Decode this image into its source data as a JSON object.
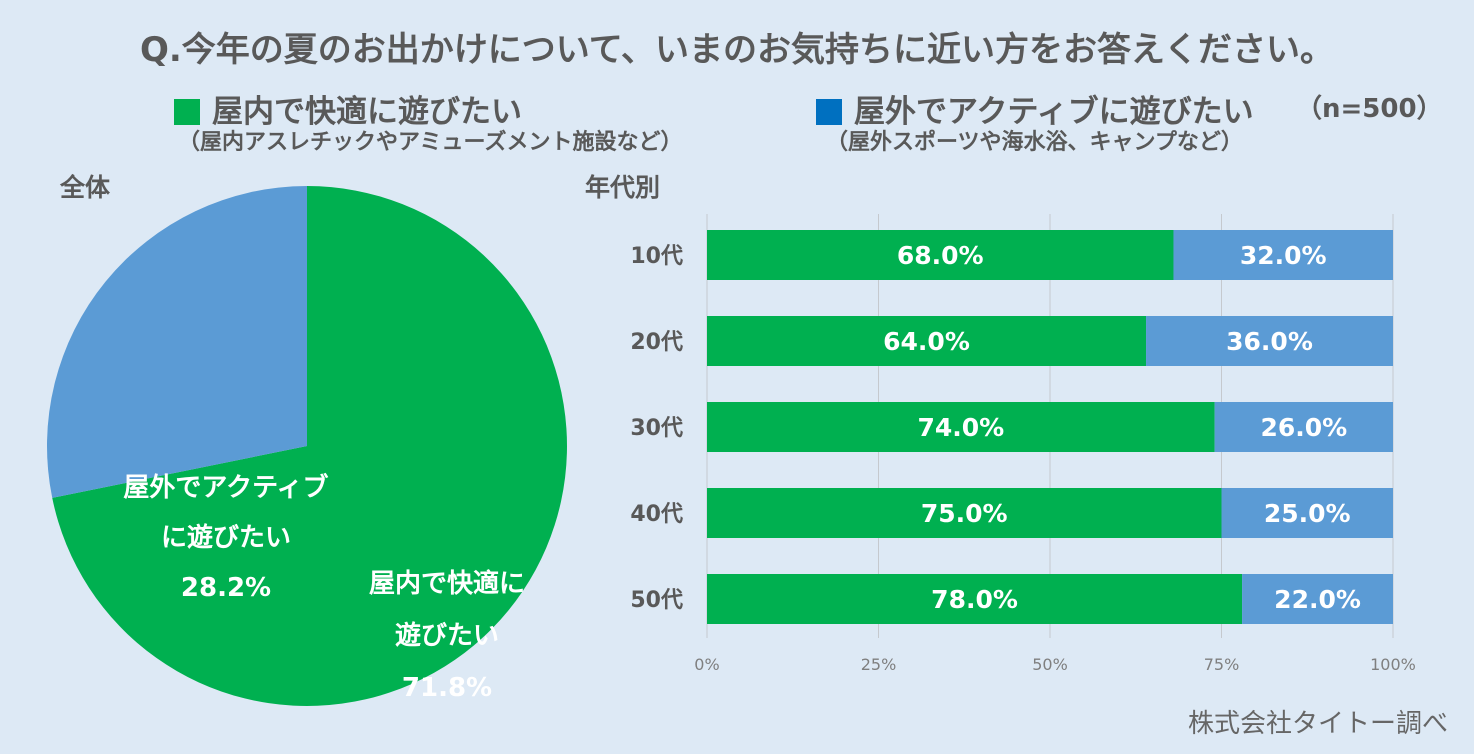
{
  "title": "Q.今年の夏のお出かけについて、いまのお気持ちに近い方をお答えください。",
  "legend": {
    "indoor": {
      "label": "屋内で快適に遊びたい",
      "sub": "（屋内アスレチックやアミューズメント施設など）",
      "color": "#00b050",
      "swatch_color": "#00b050"
    },
    "outdoor": {
      "label": "屋外でアクティブに遊びたい",
      "sub": "（屋外スポーツや海水浴、キャンプなど）",
      "color": "#5b9bd5",
      "swatch_color": "#0070c0"
    },
    "n": "（n=500）"
  },
  "pie_section_label": "全体",
  "bar_section_label": "年代別",
  "source": "株式会社タイトー調べ",
  "chart_data": [
    {
      "type": "pie",
      "slices": [
        {
          "name": "屋内で快適に遊びたい",
          "value": 71.8,
          "label_lines": [
            "屋内で快適に",
            "遊びたい",
            "71.8%"
          ],
          "color": "#00b050"
        },
        {
          "name": "屋外でアクティブに遊びたい",
          "value": 28.2,
          "label_lines": [
            "屋外でアクティブ",
            "に遊びたい",
            "28.2%"
          ],
          "color": "#5b9bd5"
        }
      ]
    },
    {
      "type": "bar",
      "orientation": "horizontal",
      "stacked": true,
      "categories": [
        "10代",
        "20代",
        "30代",
        "40代",
        "50代"
      ],
      "series": [
        {
          "name": "屋内で快適に遊びたい",
          "values": [
            68.0,
            64.0,
            74.0,
            75.0,
            78.0
          ],
          "labels": [
            "68.0%",
            "64.0%",
            "74.0%",
            "75.0%",
            "78.0%"
          ],
          "color": "#00b050"
        },
        {
          "name": "屋外でアクティブに遊びたい",
          "values": [
            32.0,
            36.0,
            26.0,
            25.0,
            22.0
          ],
          "labels": [
            "32.0%",
            "36.0%",
            "26.0%",
            "25.0%",
            "22.0%"
          ],
          "color": "#5b9bd5"
        }
      ],
      "xlim": [
        0,
        100
      ],
      "xticks": [
        0,
        25,
        50,
        75,
        100
      ],
      "xtick_labels": [
        "0%",
        "25%",
        "50%",
        "75%",
        "100%"
      ],
      "grid": true
    }
  ]
}
